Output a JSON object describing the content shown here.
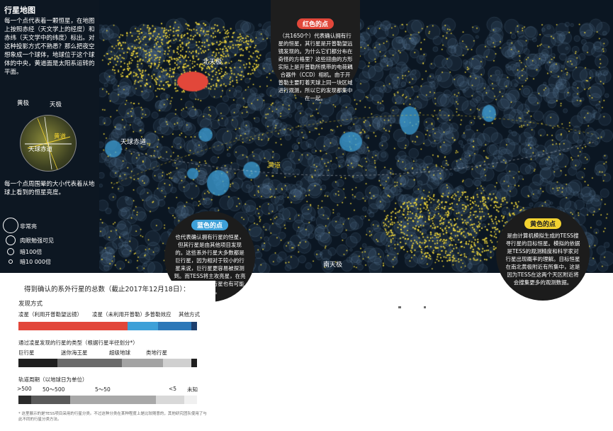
{
  "side": {
    "title": "行星地图",
    "intro": "每一个点代表着一颗恒星，在地图上按照赤经（天文学上的经度）和赤纬（天文学中的纬度）标出。对这种投影方式不熟悉？那么把夜空想象成一个球体，地球位于这个球体的中央，黄道面是太阳系运转的平面。",
    "globe_labels": {
      "ecliptic_pole": "黄极",
      "celestial_pole": "天极",
      "ecliptic": "黄道",
      "celestial_equator": "天球赤道"
    },
    "size_note": "每一个点周围晕的大小代表着从地球上看到的恒星亮度。",
    "legend": [
      "非常亮",
      "肉眼勉强可见",
      "暗100倍",
      "暗10 000倍"
    ]
  },
  "map_labels": {
    "north_pole": "北天极",
    "celestial_equator": "天球赤道",
    "ecliptic": "黄道",
    "south_pole": "南天极"
  },
  "callouts": {
    "red": {
      "title": "红色的点",
      "text": "（共1650个）代表确认拥有行星的恒星，其行星是开普勒望远镜发现的。为什么它们都分布在奇怪的方格里？这些扭曲的方形实际上是开普勒所携带的电荷耦合器件（CCD）相机。由于开普勒主要盯着天球上同一块区域进行观测，所以它的发现都集中在一起。"
    },
    "blue": {
      "title": "蓝色的点",
      "text": "也代表确认拥有行星的恒星，但其行星是由其他项目发现的。这些系外行星大多数都是巨行星，因为相对于较小的行星来说，巨行星更容易被探测到。而TESS将主攻亮星，在亮星周围，较小的行星也有可能被发现。"
    },
    "yellow": {
      "title": "黄色的点",
      "text": "是由计算机模拟生成的TESS搜寻行星的目标恒星。模拟的依据是TESS的观测精度和科学家对行星出现概率的理解。目标恒星在南北黄极附近有所集中，这是因为TESS在这两个天区附近将会搜集更多的观测数据。"
    }
  },
  "panel": {
    "title": "得到确认的系外行星的总数（截止2017年12月18日）：",
    "method_heading": "发现方式",
    "methods": [
      {
        "label": "凌星（利用开普勒望远镜）",
        "value": 0.61,
        "color": "#e2473a"
      },
      {
        "label": "凌星（未利用开普勒）",
        "value": 0.17,
        "color": "#3ea0d8"
      },
      {
        "label": "多普勒效应",
        "value": 0.19,
        "color": "#2c78b8"
      },
      {
        "label": "其他方式",
        "value": 0.03,
        "color": "#1d3f6e"
      }
    ],
    "type_heading": "通过凌星发现的行星的类型（根据行星半径划分*）",
    "types": [
      {
        "label": "巨行星",
        "value": 0.22,
        "color": "#1f1f1f"
      },
      {
        "label": "迷你海王星",
        "value": 0.36,
        "color": "#6a6a6a"
      },
      {
        "label": "超级地球",
        "value": 0.23,
        "color": "#a3a3a3"
      },
      {
        "label": "类地行星",
        "value": 0.16,
        "color": "#d0d0d0"
      },
      {
        "label": "",
        "value": 0.03,
        "color": "#1f1f1f"
      }
    ],
    "period_heading": "轨道周期（以地球日为单位）",
    "periods": [
      {
        "label": ">500",
        "value": 0.07,
        "color": "#2a2a2a"
      },
      {
        "label": "50～500",
        "value": 0.22,
        "color": "#5a5a5a"
      },
      {
        "label": "5～50",
        "value": 0.48,
        "color": "#a8a8a8"
      },
      {
        "label": "<5",
        "value": 0.16,
        "color": "#d8d8d8"
      },
      {
        "label": "未知",
        "value": 0.07,
        "color": "#f0f0f0"
      }
    ],
    "footnote": "* 这里展示的是TESS项目采用的行星分类。不过这种分类在某种程度上是比较随意的，其他研究团队使用了与此不同的行星分类方法。"
  },
  "colors": {
    "star": "#f2d93a",
    "halo": "#7aa6c8",
    "red": "#e2473a",
    "blue": "#3ea0d8"
  }
}
